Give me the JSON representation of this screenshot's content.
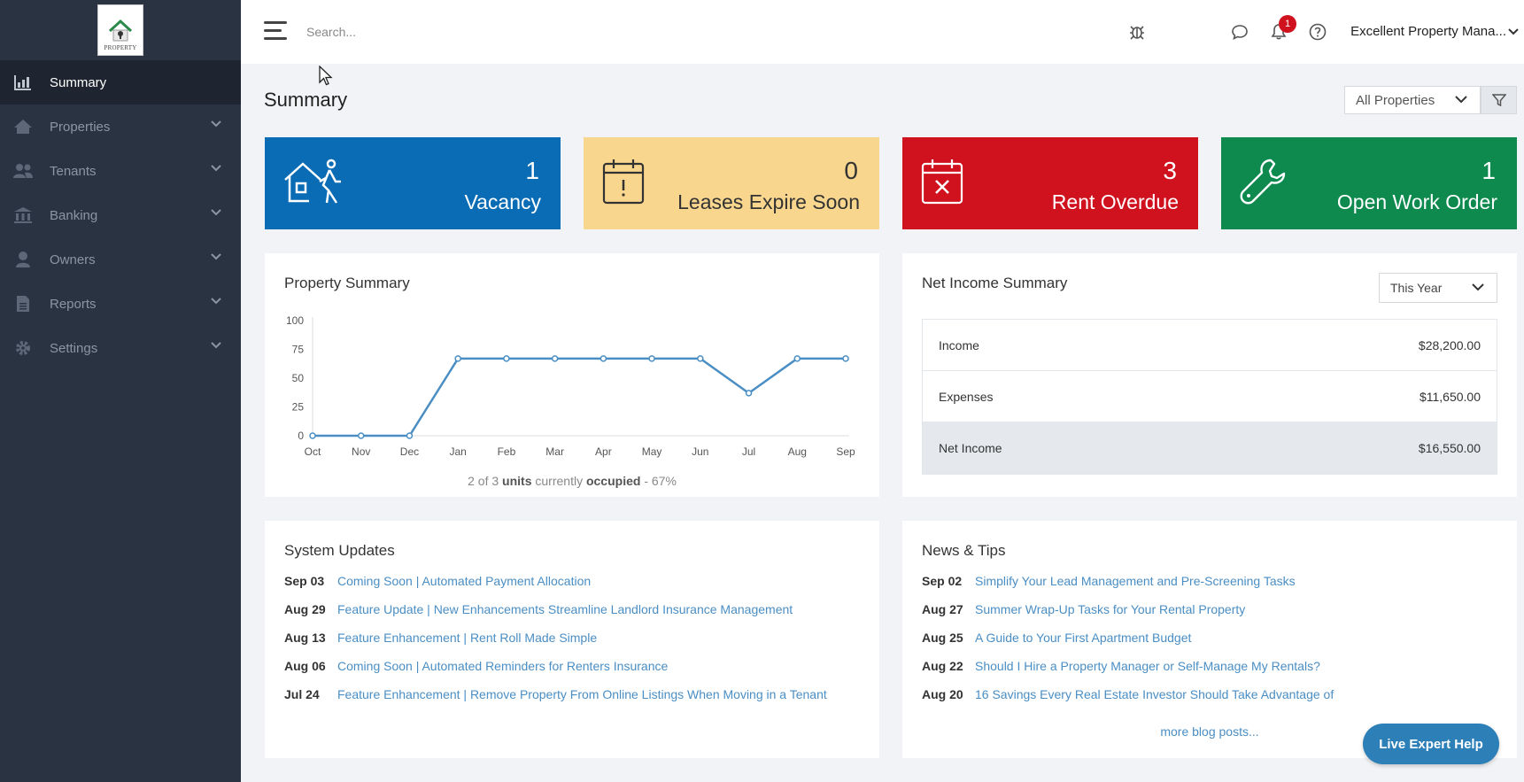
{
  "logo": {
    "text": "PROPERTY"
  },
  "sidebar": {
    "items": [
      {
        "label": "Summary",
        "icon": "chart-icon"
      },
      {
        "label": "Properties",
        "icon": "home-icon"
      },
      {
        "label": "Tenants",
        "icon": "users-icon"
      },
      {
        "label": "Banking",
        "icon": "bank-icon"
      },
      {
        "label": "Owners",
        "icon": "user-icon"
      },
      {
        "label": "Reports",
        "icon": "document-icon"
      },
      {
        "label": "Settings",
        "icon": "gear-icon"
      }
    ]
  },
  "topbar": {
    "search_placeholder": "Search...",
    "notification_count": "1",
    "account_name": "Excellent Property Mana..."
  },
  "page": {
    "title": "Summary",
    "property_filter": "All Properties"
  },
  "stats": [
    {
      "value": "1",
      "label": "Vacancy",
      "color": "#0a6cb5"
    },
    {
      "value": "0",
      "label": "Leases Expire Soon",
      "color": "#f9d68e"
    },
    {
      "value": "3",
      "label": "Rent Overdue",
      "color": "#d0121e"
    },
    {
      "value": "1",
      "label": "Open Work Order",
      "color": "#0e8a4f"
    }
  ],
  "property_summary": {
    "title": "Property Summary",
    "occupancy": {
      "count": "2",
      "of": "of",
      "total": "3",
      "units": "units",
      "currently": "currently",
      "occupied": "occupied",
      "percent": "- 67%"
    }
  },
  "chart_data": {
    "type": "line",
    "categories": [
      "Oct",
      "Nov",
      "Dec",
      "Jan",
      "Feb",
      "Mar",
      "Apr",
      "May",
      "Jun",
      "Jul",
      "Aug",
      "Sep"
    ],
    "values": [
      0,
      0,
      0,
      67,
      67,
      67,
      67,
      67,
      67,
      37,
      67,
      67
    ],
    "ylim": [
      0,
      100
    ],
    "yticks": [
      0,
      25,
      50,
      75,
      100
    ],
    "color": "#4a8ec4",
    "grid": false
  },
  "net_income": {
    "title": "Net Income Summary",
    "period": "This Year",
    "rows": [
      {
        "label": "Income",
        "value": "$28,200.00"
      },
      {
        "label": "Expenses",
        "value": "$11,650.00"
      },
      {
        "label": "Net Income",
        "value": "$16,550.00"
      }
    ]
  },
  "system_updates": {
    "title": "System Updates",
    "items": [
      {
        "date": "Sep 03",
        "text": "Coming Soon | Automated Payment Allocation"
      },
      {
        "date": "Aug 29",
        "text": "Feature Update | New Enhancements Streamline Landlord Insurance Management"
      },
      {
        "date": "Aug 13",
        "text": "Feature Enhancement | Rent Roll Made Simple"
      },
      {
        "date": "Aug 06",
        "text": "Coming Soon | Automated Reminders for Renters Insurance"
      },
      {
        "date": "Jul 24",
        "text": "Feature Enhancement | Remove Property From Online Listings When Moving in a Tenant"
      }
    ]
  },
  "news": {
    "title": "News & Tips",
    "items": [
      {
        "date": "Sep 02",
        "text": "Simplify Your Lead Management and Pre-Screening Tasks"
      },
      {
        "date": "Aug 27",
        "text": "Summer Wrap-Up Tasks for Your Rental Property"
      },
      {
        "date": "Aug 25",
        "text": "A Guide to Your First Apartment Budget"
      },
      {
        "date": "Aug 22",
        "text": "Should I Hire a Property Manager or Self-Manage My Rentals?"
      },
      {
        "date": "Aug 20",
        "text": "16 Savings Every Real Estate Investor Should Take Advantage of"
      }
    ],
    "more": "more blog posts..."
  },
  "help_button": "Live Expert Help"
}
